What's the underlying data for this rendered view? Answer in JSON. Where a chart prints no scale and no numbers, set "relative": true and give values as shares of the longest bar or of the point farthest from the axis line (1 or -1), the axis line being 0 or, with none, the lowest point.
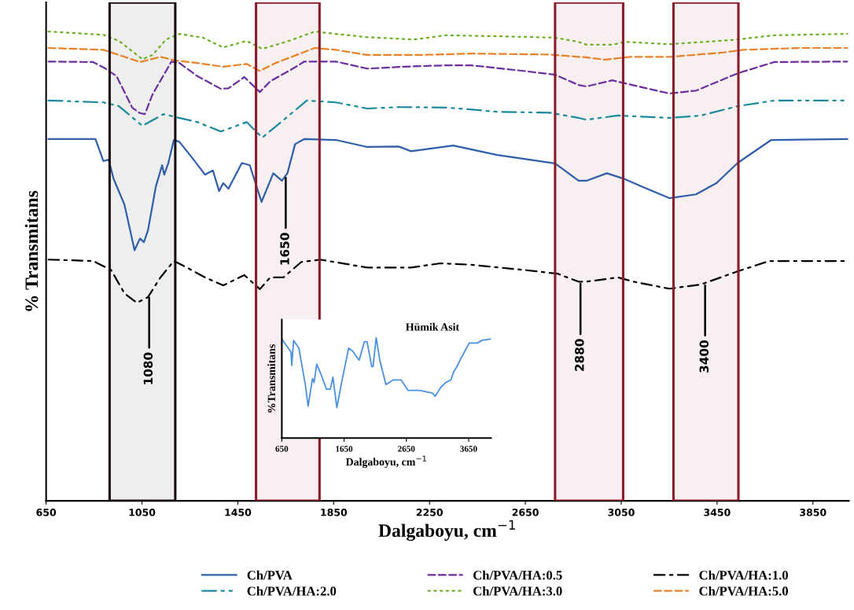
{
  "chart_data": [
    {
      "type": "line",
      "relative": true,
      "xlabel": "Dalgaboyu, cm$^{−1}$",
      "ylabel": "% Transmitans",
      "xlim": [
        650,
        4000
      ],
      "xticks": [
        650,
        1050,
        1450,
        1850,
        2250,
        2650,
        3050,
        3450,
        3850
      ],
      "legend": "bottom",
      "grid": false,
      "series": [
        {
          "name": "Ch/PVA",
          "color": "#2e5fa8",
          "line_style": "solid",
          "x": [
            660,
            856,
            889,
            911,
            931,
            977,
            1019,
            1042,
            1058,
            1075,
            1108,
            1134,
            1143,
            1160,
            1183,
            1206,
            1258,
            1313,
            1346,
            1372,
            1389,
            1411,
            1467,
            1500,
            1549,
            1598,
            1634,
            1657,
            1689,
            1728,
            1859,
            1990,
            2121,
            2173,
            2349,
            2532,
            2774,
            2872,
            2905,
            2990,
            3068,
            3143,
            3251,
            3362,
            3447,
            3536,
            3676,
            3993
          ],
          "values": [
            0.771,
            0.771,
            0.724,
            0.727,
            0.687,
            0.631,
            0.534,
            0.559,
            0.551,
            0.576,
            0.67,
            0.715,
            0.695,
            0.72,
            0.769,
            0.765,
            0.732,
            0.695,
            0.704,
            0.66,
            0.677,
            0.665,
            0.72,
            0.715,
            0.637,
            0.698,
            0.682,
            0.698,
            0.76,
            0.771,
            0.769,
            0.754,
            0.755,
            0.745,
            0.757,
            0.737,
            0.719,
            0.682,
            0.682,
            0.698,
            0.685,
            0.668,
            0.645,
            0.653,
            0.677,
            0.72,
            0.769,
            0.771
          ]
        },
        {
          "name": "Ch/PVA/HA:0.5",
          "color": "#6b2fa0",
          "line_style": "dashed",
          "x": [
            660,
            846,
            898,
            944,
            1009,
            1042,
            1062,
            1094,
            1173,
            1206,
            1281,
            1379,
            1411,
            1477,
            1542,
            1585,
            1663,
            1728,
            1859,
            1990,
            2140,
            2317,
            2425,
            2643,
            2774,
            2872,
            2905,
            3013,
            3121,
            3251,
            3362,
            3536,
            3689,
            3993
          ],
          "values": [
            0.936,
            0.935,
            0.921,
            0.905,
            0.838,
            0.826,
            0.824,
            0.866,
            0.936,
            0.933,
            0.905,
            0.878,
            0.879,
            0.903,
            0.871,
            0.894,
            0.916,
            0.936,
            0.936,
            0.921,
            0.925,
            0.928,
            0.928,
            0.916,
            0.908,
            0.886,
            0.883,
            0.896,
            0.883,
            0.868,
            0.874,
            0.911,
            0.935,
            0.936
          ]
        },
        {
          "name": "Ch/PVA/HA:1.0",
          "color": "#000000",
          "line_style": "dashdot",
          "x": [
            660,
            846,
            921,
            977,
            1029,
            1075,
            1127,
            1183,
            1238,
            1313,
            1389,
            1477,
            1542,
            1585,
            1640,
            1715,
            1794,
            1990,
            2173,
            2294,
            2425,
            2643,
            2784,
            2872,
            2905,
            3036,
            3101,
            3251,
            3382,
            3536,
            3667,
            3993
          ],
          "values": [
            0.514,
            0.511,
            0.492,
            0.442,
            0.422,
            0.434,
            0.476,
            0.511,
            0.497,
            0.476,
            0.459,
            0.481,
            0.451,
            0.476,
            0.476,
            0.509,
            0.514,
            0.497,
            0.497,
            0.506,
            0.503,
            0.492,
            0.484,
            0.467,
            0.467,
            0.476,
            0.467,
            0.452,
            0.461,
            0.489,
            0.511,
            0.511
          ]
        },
        {
          "name": "Ch/PVA/HA:2.0",
          "color": "#1b8a9c",
          "line_style": "dashdotdot",
          "x": [
            660,
            889,
            954,
            1052,
            1140,
            1281,
            1379,
            1487,
            1552,
            1663,
            1738,
            1859,
            1990,
            2121,
            2326,
            2532,
            2751,
            2872,
            2905,
            3036,
            3251,
            3382,
            3536,
            3689,
            3993
          ],
          "values": [
            0.853,
            0.849,
            0.841,
            0.799,
            0.824,
            0.807,
            0.787,
            0.807,
            0.774,
            0.821,
            0.853,
            0.849,
            0.836,
            0.839,
            0.838,
            0.829,
            0.827,
            0.816,
            0.812,
            0.821,
            0.816,
            0.821,
            0.841,
            0.853,
            0.853
          ]
        },
        {
          "name": "Ch/PVA/HA:3.0",
          "color": "#6ab023",
          "line_style": "dotted",
          "x": [
            660,
            889,
            954,
            1052,
            1094,
            1150,
            1206,
            1304,
            1389,
            1487,
            1552,
            1663,
            1771,
            1859,
            1990,
            2186,
            2317,
            2532,
            2774,
            2872,
            2905,
            3013,
            3068,
            3251,
            3513,
            3689,
            3993
          ],
          "values": [
            1.0,
            0.993,
            0.98,
            0.941,
            0.95,
            0.983,
            0.995,
            0.987,
            0.966,
            0.98,
            0.963,
            0.98,
            1.0,
            0.995,
            0.988,
            0.983,
            0.992,
            0.99,
            0.987,
            0.978,
            0.972,
            0.972,
            0.978,
            0.973,
            0.982,
            0.992,
            0.995
          ]
        },
        {
          "name": "Ch/PVA/HA:5.0",
          "color": "#e8822a",
          "line_style": "dashed",
          "x": [
            660,
            889,
            954,
            1042,
            1127,
            1192,
            1281,
            1389,
            1487,
            1542,
            1608,
            1771,
            1859,
            1990,
            2206,
            2425,
            2751,
            2872,
            2905,
            2980,
            3088,
            3251,
            3470,
            3559,
            3797,
            3993
          ],
          "values": [
            0.965,
            0.961,
            0.95,
            0.935,
            0.946,
            0.938,
            0.933,
            0.925,
            0.931,
            0.916,
            0.933,
            0.965,
            0.961,
            0.95,
            0.95,
            0.953,
            0.951,
            0.946,
            0.945,
            0.94,
            0.946,
            0.946,
            0.955,
            0.961,
            0.965,
            0.965
          ]
        }
      ],
      "bands": [
        {
          "axis": "x",
          "from": 915,
          "to": 1189,
          "color": "#1a0a0e"
        },
        {
          "axis": "x",
          "from": 1526,
          "to": 1791,
          "color": "#8b1a2b"
        },
        {
          "axis": "x",
          "from": 2774,
          "to": 3058,
          "color": "#8b1a2b"
        },
        {
          "axis": "x",
          "from": 3268,
          "to": 3539,
          "color": "#8b1a2b"
        }
      ],
      "annotations": [
        {
          "text": "1080",
          "x": 1080,
          "y": 0.438
        },
        {
          "text": "1650",
          "x": 1650,
          "y": 0.693
        },
        {
          "text": "2880",
          "x": 2880,
          "y": 0.467
        },
        {
          "text": "3400",
          "x": 3400,
          "y": 0.464
        }
      ]
    },
    {
      "type": "line",
      "relative": true,
      "title": "Hümik Asit",
      "xlabel": "Dalgaboyu, cm$^{−1}$",
      "ylabel": "%Transmitans",
      "xlim": [
        650,
        4010
      ],
      "xticks": [
        650,
        1650,
        2650,
        3650
      ],
      "grid": false,
      "series": [
        {
          "color": "#4a90e2",
          "line_style": "solid",
          "x": [
            650,
            798,
            810,
            839,
            924,
            1029,
            1072,
            1142,
            1168,
            1211,
            1281,
            1366,
            1429,
            1471,
            1534,
            1618,
            1723,
            1786,
            1892,
            1976,
            2019,
            2094,
            2115,
            2165,
            2228,
            2322,
            2439,
            2565,
            2679,
            2860,
            3070,
            3112,
            3197,
            3281,
            3365,
            3408,
            3449,
            3534,
            3660,
            3786,
            3870,
            4005
          ],
          "values": [
            0.987,
            0.855,
            0.724,
            0.974,
            0.895,
            0.526,
            0.316,
            0.592,
            0.553,
            0.737,
            0.632,
            0.487,
            0.487,
            0.605,
            0.303,
            0.579,
            0.895,
            0.868,
            0.776,
            0.961,
            0.961,
            0.711,
            0.711,
            1.0,
            0.763,
            0.532,
            0.579,
            0.579,
            0.474,
            0.474,
            0.447,
            0.416,
            0.5,
            0.553,
            0.579,
            0.658,
            0.697,
            0.803,
            0.947,
            0.947,
            0.974,
            0.987
          ]
        }
      ]
    }
  ]
}
